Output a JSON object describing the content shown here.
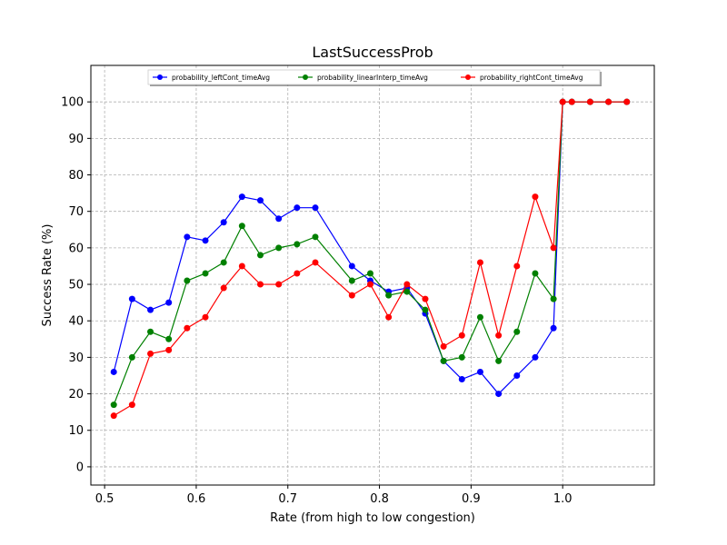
{
  "chart_data": {
    "type": "line",
    "title": "LastSuccessProb",
    "xlabel": "Rate (from high to low congestion)",
    "ylabel": "Success Rate (%)",
    "xlim": [
      0.485,
      1.1
    ],
    "ylim": [
      -5,
      110
    ],
    "xticks": [
      0.5,
      0.6,
      0.7,
      0.8,
      0.9,
      1.0
    ],
    "xtick_labels": [
      "0.5",
      "0.6",
      "0.7",
      "0.8",
      "0.9",
      "1.0"
    ],
    "yticks": [
      0,
      10,
      20,
      30,
      40,
      50,
      60,
      70,
      80,
      90,
      100
    ],
    "ytick_labels": [
      "0",
      "10",
      "20",
      "30",
      "40",
      "50",
      "60",
      "70",
      "80",
      "90",
      "100"
    ],
    "grid": true,
    "legend_position": "top-center",
    "x": [
      0.51,
      0.53,
      0.55,
      0.57,
      0.59,
      0.61,
      0.63,
      0.65,
      0.67,
      0.69,
      0.71,
      0.73,
      0.77,
      0.79,
      0.81,
      0.83,
      0.85,
      0.87,
      0.89,
      0.91,
      0.93,
      0.95,
      0.97,
      0.99,
      1.0,
      1.01,
      1.03,
      1.05,
      1.07
    ],
    "series": [
      {
        "name": "probability_leftCont_timeAvg",
        "color": "#0000ff",
        "values": [
          26,
          46,
          43,
          45,
          63,
          62,
          67,
          74,
          73,
          68,
          71,
          71,
          55,
          51,
          48,
          49,
          42,
          29,
          24,
          26,
          20,
          25,
          30,
          38,
          100,
          100,
          100,
          100,
          100
        ]
      },
      {
        "name": "probability_linearInterp_timeAvg",
        "color": "#008000",
        "values": [
          17,
          30,
          37,
          35,
          51,
          53,
          56,
          66,
          58,
          60,
          61,
          63,
          51,
          53,
          47,
          48,
          43,
          29,
          30,
          41,
          29,
          37,
          53,
          46,
          100,
          100,
          100,
          100,
          100
        ]
      },
      {
        "name": "probability_rightCont_timeAvg",
        "color": "#ff0000",
        "values": [
          14,
          17,
          31,
          32,
          38,
          41,
          49,
          55,
          50,
          50,
          53,
          56,
          47,
          50,
          41,
          50,
          46,
          33,
          36,
          56,
          36,
          55,
          74,
          60,
          100,
          100,
          100,
          100,
          100
        ]
      }
    ]
  }
}
